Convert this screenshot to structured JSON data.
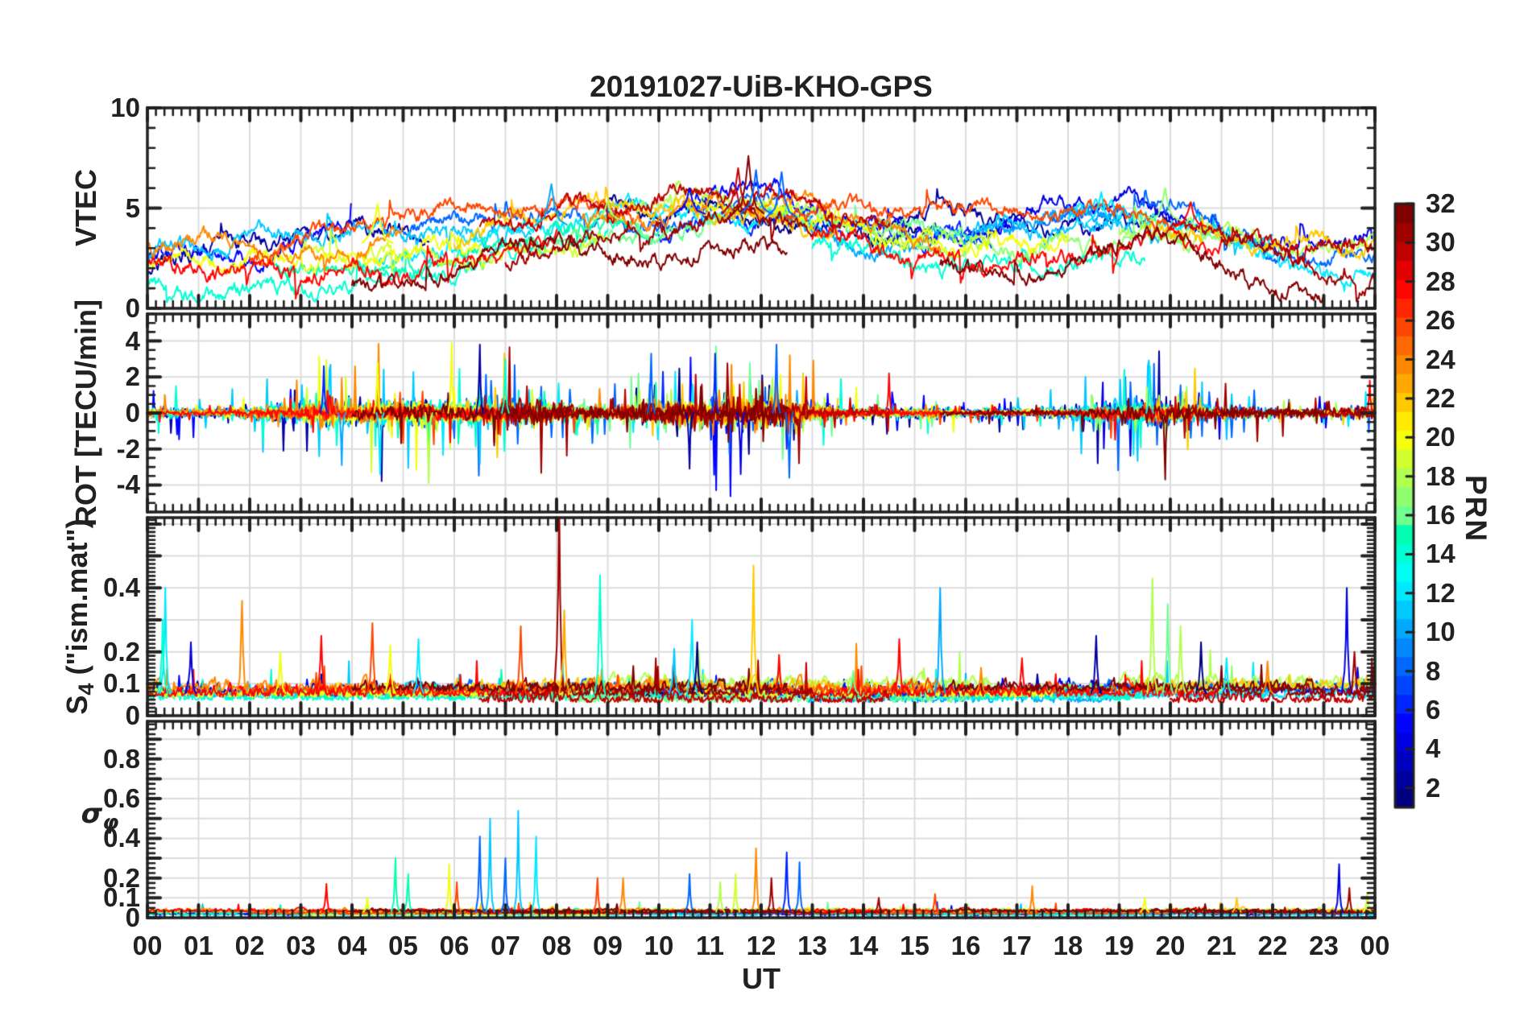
{
  "figure": {
    "title": "20191027-UiB-KHO-GPS"
  },
  "chart_data": {
    "type": "line",
    "title": "20191027-UiB-KHO-GPS",
    "xlabel": "UT",
    "x_axis": {
      "min_hour": 0,
      "max_hour": 24,
      "tick_labels": [
        "00",
        "01",
        "02",
        "03",
        "04",
        "05",
        "06",
        "07",
        "08",
        "09",
        "10",
        "11",
        "12",
        "13",
        "14",
        "15",
        "16",
        "17",
        "18",
        "19",
        "20",
        "21",
        "22",
        "23",
        "00"
      ]
    },
    "colorbar": {
      "label": "PRN",
      "min": 1,
      "max": 32,
      "tick_values": [
        2,
        4,
        6,
        8,
        10,
        12,
        14,
        16,
        18,
        20,
        22,
        24,
        26,
        28,
        30,
        32
      ],
      "colors": [
        "#000080",
        "#0000A0",
        "#0000C1",
        "#0000E2",
        "#0004FF",
        "#0025FF",
        "#0046FF",
        "#0067FF",
        "#0088FF",
        "#00A9FF",
        "#00C9FF",
        "#00EAFF",
        "#00FFF3",
        "#00FFD2",
        "#00FFB1",
        "#6FFF90",
        "#90FF6F",
        "#B1FF4E",
        "#D2FF2D",
        "#F3FF0C",
        "#FFEA00",
        "#FFC900",
        "#FFA900",
        "#FF8800",
        "#FF6700",
        "#FF4600",
        "#FF2500",
        "#FF0400",
        "#E20000",
        "#C10000",
        "#A00000",
        "#800000"
      ]
    },
    "style": {
      "grid_color": "#dcdcdc",
      "axis_color": "#212121",
      "background": "#ffffff",
      "line_width": 2
    },
    "series": {
      "windows_format": "[prn, start_hour, end_hour]",
      "windows": [
        [
          1,
          9,
          15.5
        ],
        [
          2,
          0,
          5.5
        ],
        [
          2,
          14,
          20
        ],
        [
          4,
          16,
          24
        ],
        [
          5,
          0,
          4
        ],
        [
          5,
          10.5,
          17
        ],
        [
          6,
          10,
          16.5
        ],
        [
          8,
          5,
          13
        ],
        [
          8,
          17.5,
          24
        ],
        [
          10,
          12,
          19
        ],
        [
          11,
          0,
          7.5
        ],
        [
          11,
          16,
          22
        ],
        [
          12,
          4.5,
          12
        ],
        [
          12,
          18,
          24
        ],
        [
          14,
          0,
          9
        ],
        [
          14,
          13,
          19.5
        ],
        [
          15,
          2.5,
          10
        ],
        [
          16,
          8,
          16
        ],
        [
          17,
          14,
          21.5
        ],
        [
          18,
          9,
          16.5
        ],
        [
          18,
          19,
          24
        ],
        [
          19,
          3,
          9
        ],
        [
          20,
          0,
          6.5
        ],
        [
          20,
          10.5,
          18
        ],
        [
          22,
          6,
          13.5
        ],
        [
          22,
          19.5,
          24
        ],
        [
          24,
          0,
          5
        ],
        [
          24,
          8.5,
          15.5
        ],
        [
          26,
          2,
          9.5
        ],
        [
          26,
          12.5,
          20
        ],
        [
          28,
          0,
          8
        ],
        [
          28,
          13,
          21
        ],
        [
          30,
          6.5,
          14.5
        ],
        [
          30,
          20,
          24
        ],
        [
          31,
          7,
          13
        ],
        [
          31,
          21,
          24
        ],
        [
          32,
          4,
          12.5
        ],
        [
          32,
          15.5,
          23
        ]
      ]
    },
    "panels": [
      {
        "id": "vtec",
        "ylabel_pre": "VTEC",
        "ylim": [
          0,
          10
        ],
        "yticks": [
          {
            "v": 10,
            "label": "10"
          },
          {
            "v": 5,
            "label": "5"
          },
          {
            "v": 0,
            "label": "0"
          }
        ],
        "grid_y": [
          5
        ],
        "ytick_major": [
          0,
          5,
          10
        ],
        "ytick_minor_step": 1,
        "mean_envelope": [
          [
            0,
            1.9
          ],
          [
            1,
            2.0
          ],
          [
            2,
            2.2
          ],
          [
            3,
            2.5
          ],
          [
            4,
            2.7
          ],
          [
            5,
            3.0
          ],
          [
            6,
            3.2
          ],
          [
            7,
            3.5
          ],
          [
            8,
            3.8
          ],
          [
            9,
            4.0
          ],
          [
            10,
            4.2
          ],
          [
            11,
            4.4
          ],
          [
            12,
            4.3
          ],
          [
            13,
            3.9
          ],
          [
            14,
            3.5
          ],
          [
            15,
            3.2
          ],
          [
            16,
            3.1
          ],
          [
            17,
            3.5
          ],
          [
            18,
            3.7
          ],
          [
            19,
            3.9
          ],
          [
            20,
            4.0
          ],
          [
            21,
            3.2
          ],
          [
            22,
            2.7
          ],
          [
            23,
            2.3
          ],
          [
            24,
            2.0
          ]
        ],
        "events_format": "[t_hours, value, prn]",
        "events": [
          [
            11.75,
            7.6,
            32
          ],
          [
            11.55,
            7.0,
            30
          ],
          [
            11.9,
            6.9,
            8
          ],
          [
            12.4,
            6.8,
            8
          ],
          [
            7.9,
            6.2,
            10
          ],
          [
            10.6,
            6.0,
            5
          ],
          [
            18.65,
            5.8,
            12
          ],
          [
            19.9,
            6.0,
            17
          ],
          [
            20.4,
            5.3,
            28
          ],
          [
            4.5,
            5.2,
            20
          ],
          [
            9.0,
            5.4,
            18
          ]
        ],
        "gen": {
          "kind": "level",
          "seed": 977,
          "offset": 1.2,
          "rough": 0.3,
          "clamp": [
            0.3,
            9.6
          ],
          "event_hw": 0.3,
          "event_base": "env"
        }
      },
      {
        "id": "rot",
        "ylabel_pre": "ROT [TECU/min]",
        "ylim": [
          -5.5,
          5.5
        ],
        "yticks": [
          {
            "v": 4,
            "label": "4"
          },
          {
            "v": 2,
            "label": "2"
          },
          {
            "v": 0,
            "label": "0"
          },
          {
            "v": -2,
            "label": "-2"
          },
          {
            "v": -4,
            "label": "-4"
          }
        ],
        "grid_y": [
          -4,
          -2,
          0,
          2,
          4
        ],
        "ytick_major": [
          -4,
          -2,
          0,
          2,
          4
        ],
        "ytick_minor_step": 0.5,
        "amplitude_envelope": [
          [
            0,
            0.55
          ],
          [
            1,
            0.4
          ],
          [
            2,
            0.6
          ],
          [
            3,
            1.0
          ],
          [
            3.5,
            1.25
          ],
          [
            4,
            1.15
          ],
          [
            4.5,
            1.3
          ],
          [
            5,
            1.2
          ],
          [
            5.5,
            1.35
          ],
          [
            6,
            1.25
          ],
          [
            7,
            1.35
          ],
          [
            7.5,
            1.2
          ],
          [
            8,
            1.0
          ],
          [
            9,
            0.6
          ],
          [
            9.5,
            0.9
          ],
          [
            10,
            1.2
          ],
          [
            10.5,
            1.35
          ],
          [
            11,
            1.3
          ],
          [
            11.5,
            1.45
          ],
          [
            12,
            1.4
          ],
          [
            12.5,
            1.5
          ],
          [
            13,
            1.0
          ],
          [
            13.5,
            0.6
          ],
          [
            14,
            0.5
          ],
          [
            15,
            0.5
          ],
          [
            16,
            0.4
          ],
          [
            17,
            0.45
          ],
          [
            18,
            0.55
          ],
          [
            18.5,
            0.9
          ],
          [
            19,
            1.2
          ],
          [
            19.5,
            1.35
          ],
          [
            20,
            1.3
          ],
          [
            20.5,
            1.0
          ],
          [
            21,
            0.6
          ],
          [
            22,
            0.5
          ],
          [
            23,
            0.5
          ],
          [
            23.5,
            0.6
          ],
          [
            24,
            0.7
          ]
        ],
        "events_format": "[t_hours, value, prn]",
        "events": [
          [
            3.45,
            2.6,
            6
          ],
          [
            3.8,
            -2.9,
            10
          ],
          [
            4.5,
            2.8,
            20
          ],
          [
            4.55,
            -3.4,
            12
          ],
          [
            5.5,
            -3.9,
            18
          ],
          [
            5.95,
            3.9,
            20
          ],
          [
            6.5,
            3.8,
            2
          ],
          [
            7.0,
            3.0,
            14
          ],
          [
            9.85,
            3.3,
            8
          ],
          [
            10.6,
            -3.1,
            2
          ],
          [
            11.1,
            3.3,
            6
          ],
          [
            11.6,
            -3.4,
            4
          ],
          [
            12.3,
            3.8,
            8
          ],
          [
            12.55,
            -3.6,
            8
          ],
          [
            14.5,
            2.2,
            28
          ],
          [
            19.6,
            2.6,
            12
          ],
          [
            19.9,
            -3.7,
            32
          ],
          [
            23.9,
            1.8,
            28
          ]
        ],
        "gen": {
          "kind": "burst",
          "seed": 331,
          "spike_prob": 0.055,
          "clamp": [
            -5.2,
            5.2
          ],
          "event_hw": 0.07,
          "event_base": 0
        }
      },
      {
        "id": "s4",
        "ylabel_pre": "S",
        "ylabel_sub": "4",
        "ylabel_post": " (\"ism.mat\")",
        "ylim": [
          0,
          0.62
        ],
        "yticks": [
          {
            "v": 0.4,
            "label": "0.4"
          },
          {
            "v": 0.2,
            "label": "0.2"
          },
          {
            "v": 0.1,
            "label": "0.1"
          },
          {
            "v": 0,
            "label": "0"
          }
        ],
        "grid_y": [
          0.1,
          0.2,
          0.3,
          0.4,
          0.5,
          0.6
        ],
        "ytick_major": [
          0,
          0.1,
          0.2,
          0.3,
          0.4,
          0.5,
          0.6
        ],
        "ytick_minor_step": 0.0125,
        "events_format": "[t_hours, value, prn]",
        "events": [
          [
            0.35,
            0.4,
            12
          ],
          [
            0.3,
            0.3,
            14
          ],
          [
            0.85,
            0.23,
            4
          ],
          [
            1.85,
            0.36,
            24
          ],
          [
            2.6,
            0.2,
            20
          ],
          [
            3.4,
            0.25,
            28
          ],
          [
            4.4,
            0.29,
            26
          ],
          [
            4.75,
            0.22,
            20
          ],
          [
            5.3,
            0.24,
            12
          ],
          [
            7.3,
            0.28,
            26
          ],
          [
            8.05,
            0.7,
            31
          ],
          [
            8.15,
            0.33,
            23
          ],
          [
            8.85,
            0.44,
            14
          ],
          [
            10.3,
            0.21,
            11
          ],
          [
            10.65,
            0.3,
            12
          ],
          [
            10.75,
            0.23,
            1
          ],
          [
            11.85,
            0.47,
            22
          ],
          [
            12.35,
            0.19,
            28
          ],
          [
            13.8,
            0.14,
            16
          ],
          [
            14.7,
            0.24,
            28
          ],
          [
            15.5,
            0.4,
            10
          ],
          [
            16.3,
            0.15,
            24
          ],
          [
            17.1,
            0.18,
            28
          ],
          [
            18.55,
            0.25,
            2
          ],
          [
            19.65,
            0.43,
            18
          ],
          [
            19.95,
            0.35,
            16
          ],
          [
            20.2,
            0.28,
            18
          ],
          [
            20.6,
            0.23,
            1
          ],
          [
            21.1,
            0.18,
            12
          ],
          [
            21.9,
            0.17,
            24
          ],
          [
            23.45,
            0.4,
            4
          ],
          [
            23.6,
            0.2,
            31
          ]
        ],
        "gen": {
          "kind": "floor",
          "seed": 613,
          "base": [
            0.04,
            0.05
          ],
          "rough": 0.05,
          "spike_prob": 0.012,
          "spike_amp": 0.13,
          "clamp": [
            0.02,
            0.6
          ],
          "event_hw": 0.1,
          "event_base": 0.07
        }
      },
      {
        "id": "sigma_phi",
        "ylabel_pre": "σ",
        "ylabel_sub": "φ",
        "ylim": [
          0,
          0.99
        ],
        "yticks": [
          {
            "v": 0.8,
            "label": "0.8"
          },
          {
            "v": 0.6,
            "label": "0.6"
          },
          {
            "v": 0.4,
            "label": "0.4"
          },
          {
            "v": 0.2,
            "label": "0.2"
          },
          {
            "v": 0.1,
            "label": "0.1"
          },
          {
            "v": 0,
            "label": "0"
          }
        ],
        "grid_y": [
          0.1,
          0.2,
          0.3,
          0.4,
          0.5,
          0.6,
          0.7,
          0.8,
          0.9
        ],
        "ytick_major": [
          0,
          0.1,
          0.2,
          0.3,
          0.4,
          0.5,
          0.6,
          0.7,
          0.8,
          0.9
        ],
        "ytick_minor_step": 0.025,
        "events_format": "[t_hours, value, prn]",
        "events": [
          [
            3.5,
            0.17,
            28
          ],
          [
            4.3,
            0.1,
            20
          ],
          [
            4.85,
            0.3,
            15
          ],
          [
            5.1,
            0.22,
            15
          ],
          [
            5.9,
            0.27,
            20
          ],
          [
            6.05,
            0.18,
            26
          ],
          [
            6.5,
            0.41,
            8
          ],
          [
            6.7,
            0.5,
            11
          ],
          [
            7.0,
            0.3,
            8
          ],
          [
            7.25,
            0.54,
            11
          ],
          [
            7.6,
            0.41,
            12
          ],
          [
            8.8,
            0.2,
            26
          ],
          [
            9.3,
            0.2,
            24
          ],
          [
            10.6,
            0.22,
            8
          ],
          [
            11.2,
            0.18,
            18
          ],
          [
            11.5,
            0.22,
            19
          ],
          [
            11.9,
            0.35,
            24
          ],
          [
            12.2,
            0.2,
            31
          ],
          [
            12.5,
            0.33,
            6
          ],
          [
            12.75,
            0.28,
            8
          ],
          [
            14.3,
            0.1,
            31
          ],
          [
            15.4,
            0.12,
            26
          ],
          [
            17.3,
            0.16,
            24
          ],
          [
            19.5,
            0.1,
            20
          ],
          [
            21.3,
            0.1,
            22
          ],
          [
            23.3,
            0.27,
            4
          ],
          [
            23.5,
            0.15,
            31
          ],
          [
            23.85,
            0.12,
            19
          ]
        ],
        "gen": {
          "kind": "floor",
          "seed": 191,
          "base": [
            0.012,
            0.02
          ],
          "rough": 0.022,
          "spike_prob": 0.008,
          "spike_amp": 0.08,
          "clamp": [
            0.004,
            0.93
          ],
          "event_hw": 0.08,
          "event_base": 0.03
        }
      }
    ]
  }
}
